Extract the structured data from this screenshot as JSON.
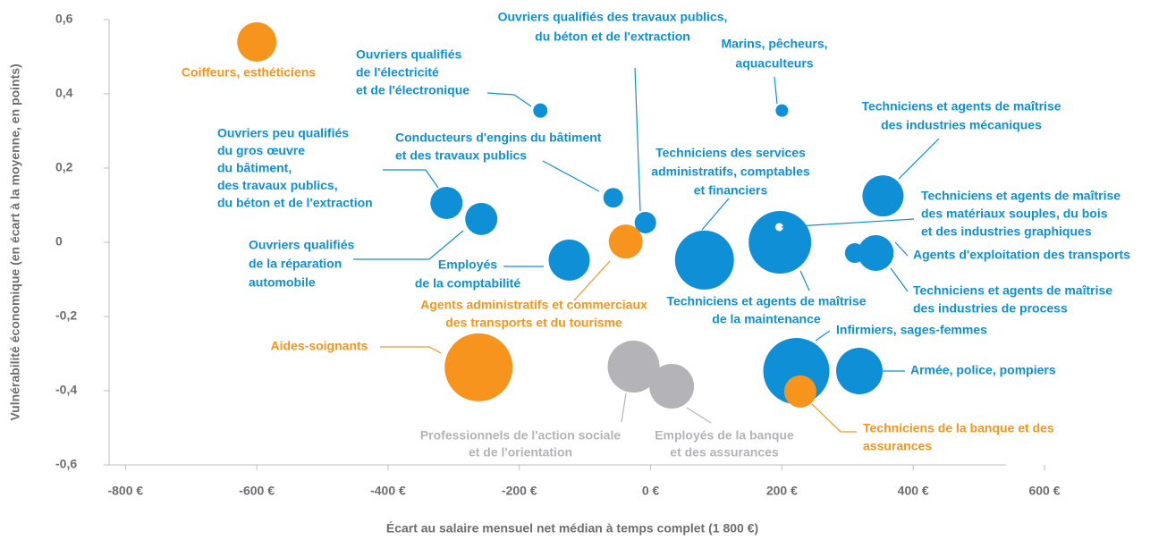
{
  "chart_data": {
    "type": "scatter",
    "xlabel": "Écart au salaire mensuel net médian à temps complet (1 800 €)",
    "ylabel": "Vulnérabilité économique (en écart à la moyenne, en points)",
    "xlim": [
      -825,
      600
    ],
    "ylim": [
      -0.6,
      0.6
    ],
    "xticks": [
      {
        "value": -800,
        "label": "-800 €"
      },
      {
        "value": -600,
        "label": "-600 €"
      },
      {
        "value": -400,
        "label": "-400 €"
      },
      {
        "value": -200,
        "label": "-200 €"
      },
      {
        "value": 0,
        "label": "0 €"
      },
      {
        "value": 200,
        "label": "200 €"
      },
      {
        "value": 400,
        "label": "400 €"
      },
      {
        "value": 600,
        "label": "600 €"
      }
    ],
    "yticks": [
      {
        "value": 0.6,
        "label": "0,6"
      },
      {
        "value": 0.4,
        "label": "0,4"
      },
      {
        "value": 0.2,
        "label": "0,2"
      },
      0,
      {
        "value": -0.2,
        "label": "-0,2"
      },
      {
        "value": -0.4,
        "label": "-0,4"
      },
      {
        "value": -0.6,
        "label": "-0,6"
      }
    ],
    "points": [
      {
        "label": [
          "Coiffeurs, esthéticiens"
        ],
        "x": -600,
        "y": 0.54,
        "size": 22,
        "color": "#f7941d"
      },
      {
        "label": [
          "Ouvriers qualifiés",
          "de l'électricité",
          "et de l'électronique"
        ],
        "x": -168,
        "y": 0.355,
        "size": 8,
        "color": "#0f8fd6"
      },
      {
        "label": [
          "Marins, pêcheurs,",
          "aquaculteurs"
        ],
        "x": 200,
        "y": 0.355,
        "size": 7,
        "color": "#0f8fd6"
      },
      {
        "label": [
          "Ouvriers peu qualifiés",
          "du gros œuvre",
          "du bâtiment,",
          "des travaux publics,",
          "du béton et de l'extraction"
        ],
        "x": -311,
        "y": 0.106,
        "size": 18,
        "color": "#0f8fd6"
      },
      {
        "label": [
          "Ouvriers qualifiés",
          "de la réparation",
          "automobile"
        ],
        "x": -258,
        "y": 0.063,
        "size": 18,
        "color": "#0f8fd6"
      },
      {
        "label": [
          "Conducteurs d'engins du bâtiment",
          "et des travaux publics"
        ],
        "x": -57,
        "y": 0.12,
        "size": 11,
        "color": "#0f8fd6"
      },
      {
        "label": [
          "Ouvriers qualifiés des travaux publics,",
          "du béton et de l'extraction"
        ],
        "x": -8,
        "y": 0.053,
        "size": 12,
        "color": "#0f8fd6"
      },
      {
        "label": [
          "Employés",
          "de la comptabilité"
        ],
        "x": -124,
        "y": -0.048,
        "size": 23,
        "color": "#0f8fd6"
      },
      {
        "label": [
          "Agents administratifs  et commerciaux",
          "des transports  et du tourisme"
        ],
        "x": -38,
        "y": 0.002,
        "size": 19,
        "color": "#f7941d"
      },
      {
        "label": [
          "Techniciens des services",
          "administratifs, comptables",
          "et financiers"
        ],
        "x": 82,
        "y": -0.048,
        "size": 33,
        "color": "#0f8fd6"
      },
      {
        "label": [
          "Techniciens et agents de maîtrise",
          "de la maintenance"
        ],
        "x": 197,
        "y": 0.0,
        "size": 35,
        "color": "#0f8fd6"
      },
      {
        "label": [
          "Techniciens et agents de maîtrise",
          "des matériaux souples, du bois",
          "et des industries graphiques"
        ],
        "x": 196,
        "y": 0.041,
        "size": 5,
        "color": "#ffffff"
      },
      {
        "label": [
          "Techniciens et agents de maîtrise",
          "des industries mécaniques"
        ],
        "x": 354,
        "y": 0.125,
        "size": 23,
        "color": "#0f8fd6"
      },
      {
        "label": [
          "Agents d'exploitation des transports"
        ],
        "x": 311,
        "y": -0.029,
        "size": 11,
        "color": "#0f8fd6"
      },
      {
        "label": [
          "Techniciens et agents de maîtrise",
          "des industries de process"
        ],
        "x": 343,
        "y": -0.029,
        "size": 20,
        "color": "#0f8fd6"
      },
      {
        "label": [
          "Infirmiers, sages-femmes"
        ],
        "x": 222,
        "y": -0.347,
        "size": 37,
        "color": "#0f8fd6"
      },
      {
        "label": [
          "Armée, police, pompiers"
        ],
        "x": 318,
        "y": -0.347,
        "size": 26,
        "color": "#0f8fd6"
      },
      {
        "label": [
          "Techniciens de la banque et des",
          "assurances"
        ],
        "x": 228,
        "y": -0.402,
        "size": 18,
        "color": "#f7941d"
      },
      {
        "label": [
          "Aides-soignants"
        ],
        "x": -262,
        "y": -0.337,
        "size": 38,
        "color": "#f7941d"
      },
      {
        "label": [
          "Professionnels de l'action sociale",
          "et de l'orientation"
        ],
        "x": -26,
        "y": -0.335,
        "size": 29,
        "color": "#b4b4b8"
      },
      {
        "label": [
          "Employés de la banque",
          "et des assurances"
        ],
        "x": 32,
        "y": -0.388,
        "size": 25,
        "color": "#b4b4b8"
      }
    ]
  }
}
